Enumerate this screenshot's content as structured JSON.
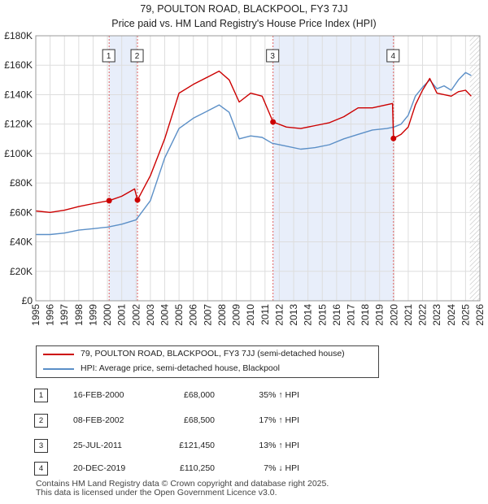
{
  "title_line1": "79, POULTON ROAD, BLACKPOOL, FY3 7JJ",
  "title_line2": "Price paid vs. HM Land Registry's House Price Index (HPI)",
  "colors": {
    "property": "#cc0000",
    "hpi": "#5b8fc7",
    "shade": "#e8eefa",
    "grid": "#dddddd"
  },
  "chart_data": {
    "type": "line",
    "title": "79, POULTON ROAD, BLACKPOOL, FY3 7JJ",
    "subtitle": "Price paid vs. HM Land Registry's House Price Index (HPI)",
    "xlim": [
      1995,
      2026
    ],
    "ylim": [
      0,
      180000
    ],
    "y_ticks": [
      0,
      20000,
      40000,
      60000,
      80000,
      100000,
      120000,
      140000,
      160000,
      180000
    ],
    "y_tick_labels": [
      "£0",
      "£20K",
      "£40K",
      "£60K",
      "£80K",
      "£100K",
      "£120K",
      "£140K",
      "£160K",
      "£180K"
    ],
    "x_tick_labels": [
      "1995",
      "1996",
      "1997",
      "1998",
      "1999",
      "2000",
      "2001",
      "2002",
      "2003",
      "2004",
      "2005",
      "2006",
      "2007",
      "2008",
      "2009",
      "2010",
      "2011",
      "2012",
      "2013",
      "2014",
      "2015",
      "2016",
      "2017",
      "2018",
      "2019",
      "2020",
      "2021",
      "2022",
      "2023",
      "2024",
      "2025",
      "2026"
    ],
    "grid": true,
    "shaded_ranges": [
      [
        2000.12,
        2002.1
      ],
      [
        2011.56,
        2019.97
      ]
    ],
    "hatched_after": 2025.3,
    "series": [
      {
        "name": "79, POULTON ROAD, BLACKPOOL, FY3 7JJ (semi-detached house)",
        "color": "#cc0000",
        "x": [
          1995,
          1996,
          1997,
          1998,
          1999,
          2000.12,
          2001,
          2001.9,
          2002.1,
          2003,
          2004,
          2005,
          2006,
          2007,
          2007.8,
          2008.5,
          2009.2,
          2010,
          2010.8,
          2011.56,
          2012.5,
          2013.5,
          2014.5,
          2015.5,
          2016.5,
          2017.5,
          2018.5,
          2019.9,
          2019.97,
          2020.5,
          2021,
          2021.5,
          2022,
          2022.5,
          2023,
          2023.5,
          2024,
          2024.5,
          2025,
          2025.4
        ],
        "y": [
          61000,
          60000,
          61500,
          64000,
          66000,
          68000,
          71000,
          76000,
          68500,
          85000,
          110000,
          141000,
          147000,
          152000,
          156000,
          150000,
          135000,
          141000,
          139000,
          121450,
          118000,
          117000,
          119000,
          121000,
          125000,
          131000,
          131000,
          134000,
          110250,
          113000,
          118000,
          133000,
          143000,
          151000,
          141000,
          140000,
          139000,
          142000,
          143000,
          139000
        ]
      },
      {
        "name": "HPI: Average price, semi-detached house, Blackpool",
        "color": "#5b8fc7",
        "x": [
          1995,
          1996,
          1997,
          1998,
          1999,
          2000,
          2001,
          2002,
          2003,
          2004,
          2005,
          2006,
          2007,
          2007.8,
          2008.5,
          2009.2,
          2010,
          2010.8,
          2011.5,
          2012.5,
          2013.5,
          2014.5,
          2015.5,
          2016.5,
          2017.5,
          2018.5,
          2019.5,
          2020,
          2020.5,
          2021,
          2021.5,
          2022,
          2022.5,
          2023,
          2023.5,
          2024,
          2024.5,
          2025,
          2025.4
        ],
        "y": [
          45000,
          45000,
          46000,
          48000,
          49000,
          50000,
          52000,
          55000,
          68000,
          97000,
          117000,
          124000,
          129000,
          133000,
          128000,
          110000,
          112000,
          111000,
          107000,
          105000,
          103000,
          104000,
          106000,
          110000,
          113000,
          116000,
          117000,
          118000,
          120000,
          126000,
          139000,
          145000,
          150000,
          144000,
          146000,
          143000,
          150000,
          155000,
          153000
        ]
      }
    ],
    "sales": [
      {
        "label": "1",
        "x": 2000.12,
        "y": 68000
      },
      {
        "label": "2",
        "x": 2002.1,
        "y": 68500
      },
      {
        "label": "3",
        "x": 2011.56,
        "y": 121450
      },
      {
        "label": "4",
        "x": 2019.97,
        "y": 110250
      }
    ]
  },
  "legend": {
    "property_label": "79, POULTON ROAD, BLACKPOOL, FY3 7JJ (semi-detached house)",
    "hpi_label": "HPI: Average price, semi-detached house, Blackpool"
  },
  "sales_table": [
    {
      "num": "1",
      "date": "16-FEB-2000",
      "price": "£68,000",
      "hpi": "35% ↑ HPI"
    },
    {
      "num": "2",
      "date": "08-FEB-2002",
      "price": "£68,500",
      "hpi": "17% ↑ HPI"
    },
    {
      "num": "3",
      "date": "25-JUL-2011",
      "price": "£121,450",
      "hpi": "13% ↑ HPI"
    },
    {
      "num": "4",
      "date": "20-DEC-2019",
      "price": "£110,250",
      "hpi": "7% ↓ HPI"
    }
  ],
  "footer": {
    "line1": "Contains HM Land Registry data © Crown copyright and database right 2025.",
    "line2": "This data is licensed under the Open Government Licence v3.0."
  }
}
